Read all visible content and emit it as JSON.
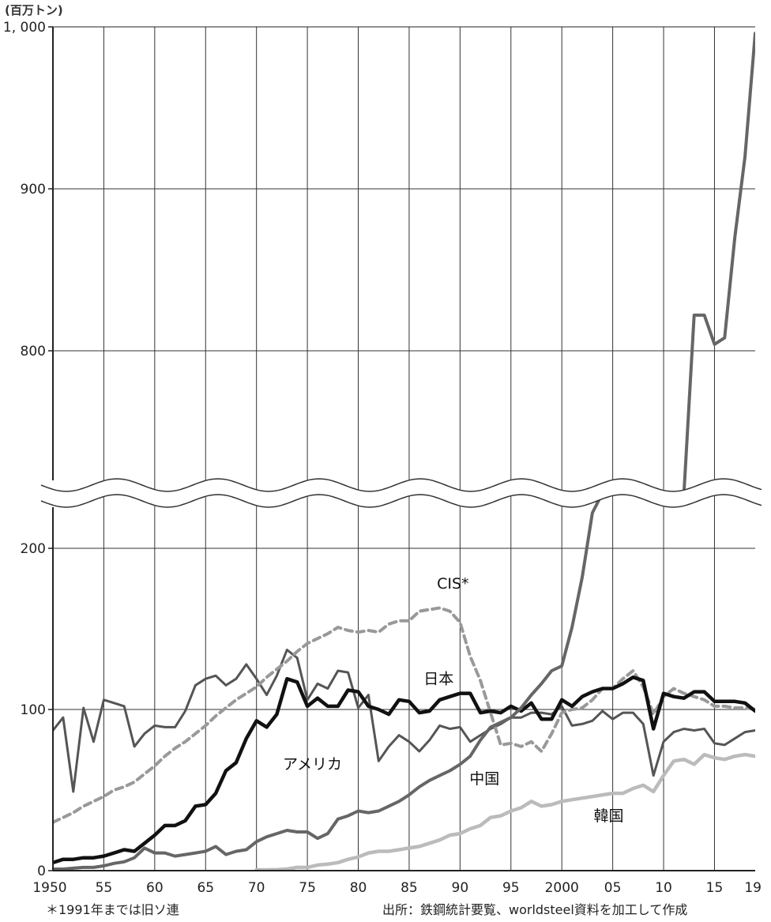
{
  "chart_data": {
    "type": "line",
    "unit_label": "(百万トン)",
    "y_ticks": [
      {
        "value": 0,
        "label": "0"
      },
      {
        "value": 100,
        "label": "100"
      },
      {
        "value": 200,
        "label": "200"
      },
      {
        "value": 800,
        "label": "800"
      },
      {
        "value": 900,
        "label": "900"
      },
      {
        "value": 1000,
        "label": "1, 000"
      }
    ],
    "y_axis_break": [
      240,
      730
    ],
    "x_ticks": [
      {
        "value": 1950,
        "label": "1950"
      },
      {
        "value": 1955,
        "label": "55"
      },
      {
        "value": 1960,
        "label": "60"
      },
      {
        "value": 1965,
        "label": "65"
      },
      {
        "value": 1970,
        "label": "70"
      },
      {
        "value": 1975,
        "label": "75"
      },
      {
        "value": 1980,
        "label": "80"
      },
      {
        "value": 1985,
        "label": "85"
      },
      {
        "value": 1990,
        "label": "90"
      },
      {
        "value": 1995,
        "label": "95"
      },
      {
        "value": 2000,
        "label": "2000"
      },
      {
        "value": 2005,
        "label": "05"
      },
      {
        "value": 2010,
        "label": "10"
      },
      {
        "value": 2015,
        "label": "15"
      },
      {
        "value": 2019,
        "label": "19"
      }
    ],
    "xlim": [
      1950,
      2019
    ],
    "grid": true,
    "series": [
      {
        "name": "アメリカ",
        "color": "#555555",
        "dash": false,
        "label_point": [
          1975.5,
          63
        ],
        "x": [
          1950,
          1951,
          1952,
          1953,
          1954,
          1955,
          1956,
          1957,
          1958,
          1959,
          1960,
          1961,
          1962,
          1963,
          1964,
          1965,
          1966,
          1967,
          1968,
          1969,
          1970,
          1971,
          1972,
          1973,
          1974,
          1975,
          1976,
          1977,
          1978,
          1979,
          1980,
          1981,
          1982,
          1983,
          1984,
          1985,
          1986,
          1987,
          1988,
          1989,
          1990,
          1991,
          1992,
          1993,
          1994,
          1995,
          1996,
          1997,
          1998,
          1999,
          2000,
          2001,
          2002,
          2003,
          2004,
          2005,
          2006,
          2007,
          2008,
          2009,
          2010,
          2011,
          2012,
          2013,
          2014,
          2015,
          2016,
          2017,
          2018,
          2019
        ],
        "values": [
          87,
          95,
          49,
          101,
          80,
          106,
          104,
          102,
          77,
          85,
          90,
          89,
          89,
          99,
          115,
          119,
          121,
          115,
          119,
          128,
          119,
          109,
          121,
          137,
          132,
          106,
          116,
          113,
          124,
          123,
          101,
          109,
          68,
          77,
          84,
          80,
          74,
          81,
          90,
          88,
          89,
          80,
          84,
          88,
          91,
          95,
          95,
          98,
          98,
          97,
          102,
          90,
          91,
          93,
          99,
          94,
          98,
          98,
          91,
          59,
          80,
          86,
          88,
          87,
          88,
          79,
          78,
          82,
          86,
          87
        ]
      },
      {
        "name": "CIS*",
        "color": "#999999",
        "dash": true,
        "label_point": [
          1989.3,
          175
        ],
        "x": [
          1950,
          1951,
          1952,
          1953,
          1954,
          1955,
          1956,
          1957,
          1958,
          1959,
          1960,
          1961,
          1962,
          1963,
          1964,
          1965,
          1966,
          1967,
          1968,
          1969,
          1970,
          1971,
          1972,
          1973,
          1974,
          1975,
          1976,
          1977,
          1978,
          1979,
          1980,
          1981,
          1982,
          1983,
          1984,
          1985,
          1986,
          1987,
          1988,
          1989,
          1990,
          1991,
          1992,
          1993,
          1994,
          1995,
          1996,
          1997,
          1998,
          1999,
          2000,
          2001,
          2002,
          2003,
          2004,
          2005,
          2006,
          2007,
          2008,
          2009,
          2010,
          2011,
          2012,
          2013,
          2014,
          2015,
          2016,
          2017,
          2018,
          2019
        ],
        "values": [
          30,
          33,
          36,
          40,
          43,
          46,
          50,
          52,
          55,
          60,
          65,
          71,
          76,
          80,
          85,
          90,
          96,
          101,
          106,
          110,
          114,
          120,
          125,
          130,
          136,
          141,
          144,
          147,
          151,
          149,
          148,
          149,
          148,
          153,
          155,
          155,
          161,
          162,
          163,
          161,
          154,
          133,
          118,
          98,
          78,
          79,
          77,
          80,
          74,
          85,
          98,
          100,
          101,
          106,
          113,
          113,
          119,
          124,
          114,
          97,
          108,
          113,
          110,
          108,
          106,
          102,
          102,
          101,
          101,
          100
        ]
      },
      {
        "name": "日本",
        "color": "#111111",
        "dash": false,
        "label_point": [
          1987.9,
          116
        ],
        "x": [
          1950,
          1951,
          1952,
          1953,
          1954,
          1955,
          1956,
          1957,
          1958,
          1959,
          1960,
          1961,
          1962,
          1963,
          1964,
          1965,
          1966,
          1967,
          1968,
          1969,
          1970,
          1971,
          1972,
          1973,
          1974,
          1975,
          1976,
          1977,
          1978,
          1979,
          1980,
          1981,
          1982,
          1983,
          1984,
          1985,
          1986,
          1987,
          1988,
          1989,
          1990,
          1991,
          1992,
          1993,
          1994,
          1995,
          1996,
          1997,
          1998,
          1999,
          2000,
          2001,
          2002,
          2003,
          2004,
          2005,
          2006,
          2007,
          2008,
          2009,
          2010,
          2011,
          2012,
          2013,
          2014,
          2015,
          2016,
          2017,
          2018,
          2019
        ],
        "values": [
          5,
          7,
          7,
          8,
          8,
          9,
          11,
          13,
          12,
          17,
          22,
          28,
          28,
          31,
          40,
          41,
          48,
          62,
          67,
          82,
          93,
          89,
          97,
          119,
          117,
          102,
          107,
          102,
          102,
          112,
          111,
          102,
          100,
          97,
          106,
          105,
          98,
          99,
          106,
          108,
          110,
          110,
          98,
          99,
          98,
          102,
          99,
          104,
          94,
          94,
          106,
          102,
          108,
          111,
          113,
          113,
          116,
          120,
          118,
          88,
          110,
          108,
          107,
          111,
          111,
          105,
          105,
          105,
          104,
          99
        ]
      },
      {
        "name": "中国",
        "color": "#666666",
        "dash": false,
        "label_point": [
          1992.4,
          54
        ],
        "x": [
          1950,
          1951,
          1952,
          1953,
          1954,
          1955,
          1956,
          1957,
          1958,
          1959,
          1960,
          1961,
          1962,
          1963,
          1964,
          1965,
          1966,
          1967,
          1968,
          1969,
          1970,
          1971,
          1972,
          1973,
          1974,
          1975,
          1976,
          1977,
          1978,
          1979,
          1980,
          1981,
          1982,
          1983,
          1984,
          1985,
          1986,
          1987,
          1988,
          1989,
          1990,
          1991,
          1992,
          1993,
          1994,
          1995,
          1996,
          1997,
          1998,
          1999,
          2000,
          2001,
          2002,
          2003,
          2004,
          2005,
          2006,
          2007,
          2008,
          2009,
          2010,
          2011,
          2012,
          2013,
          2014,
          2015,
          2016,
          2017,
          2018,
          2019
        ],
        "values": [
          1,
          1,
          1.5,
          2,
          2,
          3,
          4.5,
          5.5,
          8,
          14,
          11,
          11,
          9,
          10,
          11,
          12,
          15,
          10,
          12,
          13,
          18,
          21,
          23,
          25,
          24,
          24,
          20,
          23,
          32,
          34,
          37,
          36,
          37,
          40,
          43,
          47,
          52,
          56,
          59,
          62,
          66,
          71,
          81,
          89,
          92,
          95,
          101,
          109,
          116,
          124,
          127,
          151,
          182,
          222,
          273,
          355,
          419,
          489,
          503,
          574,
          638,
          702,
          724,
          822,
          822,
          804,
          808,
          870,
          920,
          996
        ]
      },
      {
        "name": "韓国",
        "color": "#bbbbbb",
        "dash": false,
        "label_point": [
          2004.6,
          31
        ],
        "x": [
          1970,
          1971,
          1972,
          1973,
          1974,
          1975,
          1976,
          1977,
          1978,
          1979,
          1980,
          1981,
          1982,
          1983,
          1984,
          1985,
          1986,
          1987,
          1988,
          1989,
          1990,
          1991,
          1992,
          1993,
          1994,
          1995,
          1996,
          1997,
          1998,
          1999,
          2000,
          2001,
          2002,
          2003,
          2004,
          2005,
          2006,
          2007,
          2008,
          2009,
          2010,
          2011,
          2012,
          2013,
          2014,
          2015,
          2016,
          2017,
          2018,
          2019
        ],
        "values": [
          0.5,
          0.5,
          0.6,
          1,
          2,
          2,
          3.5,
          4,
          5,
          7,
          8.5,
          11,
          12,
          12,
          13,
          14,
          15,
          17,
          19,
          22,
          23,
          26,
          28,
          33,
          34,
          37,
          39,
          43,
          40,
          41,
          43,
          44,
          45,
          46,
          47,
          48,
          48,
          51,
          53,
          49,
          59,
          68,
          69,
          66,
          72,
          70,
          69,
          71,
          72,
          71
        ]
      }
    ]
  },
  "notes": {
    "left": "＊1991年までは旧ソ連",
    "right": "出所：鉄鋼統計要覧、worldsteel資料を加工して作成"
  }
}
